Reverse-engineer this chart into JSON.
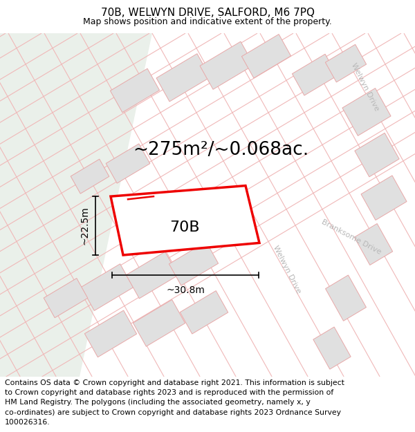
{
  "title_line1": "70B, WELWYN DRIVE, SALFORD, M6 7PQ",
  "title_line2": "Map shows position and indicative extent of the property.",
  "area_text": "~275m²/~0.068ac.",
  "label_70B": "70B",
  "dim_width": "~30.8m",
  "dim_height": "~22.5m",
  "footer_lines": [
    "Contains OS data © Crown copyright and database right 2021. This information is subject",
    "to Crown copyright and database rights 2023 and is reproduced with the permission of",
    "HM Land Registry. The polygons (including the associated geometry, namely x, y",
    "co-ordinates) are subject to Crown copyright and database rights 2023 Ordnance Survey",
    "100026316."
  ],
  "map_bg": "#f5f5f0",
  "map_left_bg": "#eaf0ea",
  "building_color": "#e0e0e0",
  "building_edge": "#e8a8a8",
  "plot_fill": "#ffffff",
  "plot_edge": "#ee0000",
  "road_label_color": "#b8b8b8",
  "street_line_color": "#f0b8b8",
  "dim_line_color": "#000000",
  "title_fontsize": 11,
  "subtitle_fontsize": 9,
  "area_fontsize": 19,
  "label_fontsize": 16,
  "dim_fontsize": 10,
  "footer_fontsize": 7.8,
  "road_label_fontsize": 8
}
